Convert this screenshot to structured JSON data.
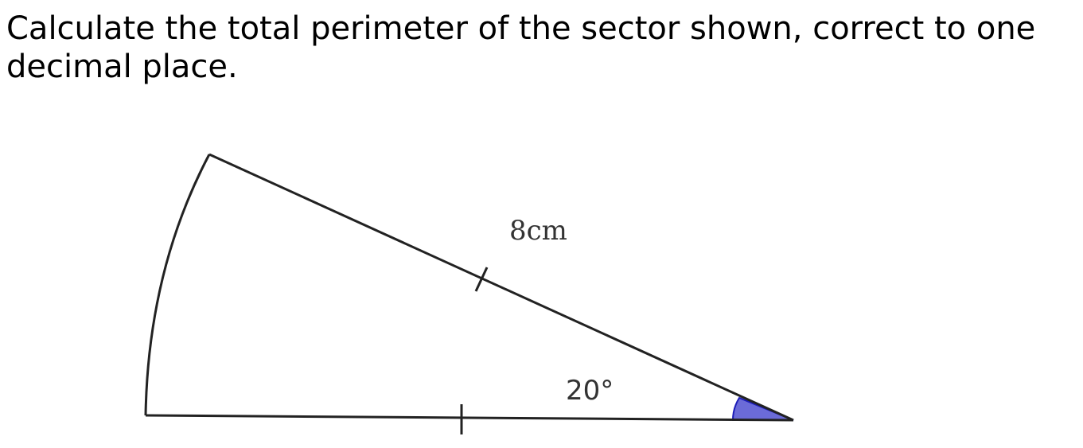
{
  "question": {
    "text": "Calculate the total perimeter of the sector shown, correct to one decimal place."
  },
  "diagram": {
    "radius_label": "8cm",
    "angle_label": "20°",
    "angle_fill_color": "#6b6bd8",
    "line_color": "#222222"
  }
}
